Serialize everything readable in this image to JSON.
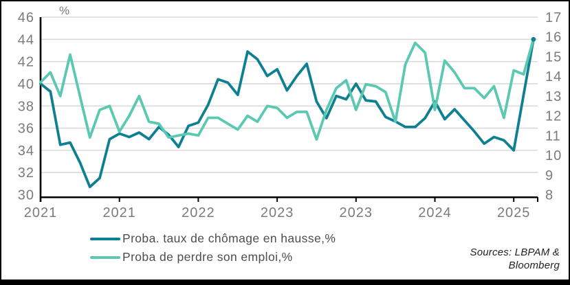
{
  "legend": {
    "items": [
      {
        "label": "Proba. taux de chômage en hausse,%",
        "color": "#0e8091"
      },
      {
        "label": "Proba de perdre son emploi,%",
        "color": "#5bc9b1"
      }
    ]
  },
  "source_note": {
    "line1": "Sources: LBPAM &",
    "line2": "Bloomberg"
  },
  "chart_data": {
    "type": "line",
    "title": "",
    "x": [
      "2021-01",
      "2021-02",
      "2021-03",
      "2021-04",
      "2021-05",
      "2021-06",
      "2021-07",
      "2021-08",
      "2021-09",
      "2021-10",
      "2021-11",
      "2021-12",
      "2022-01",
      "2022-02",
      "2022-03",
      "2022-04",
      "2022-05",
      "2022-06",
      "2022-07",
      "2022-08",
      "2022-09",
      "2022-10",
      "2022-11",
      "2022-12",
      "2023-01",
      "2023-02",
      "2023-03",
      "2023-04",
      "2023-05",
      "2023-06",
      "2023-07",
      "2023-08",
      "2023-09",
      "2023-10",
      "2023-11",
      "2023-12",
      "2024-01",
      "2024-02",
      "2024-03",
      "2024-04",
      "2024-05",
      "2024-06",
      "2024-07",
      "2024-08",
      "2024-09",
      "2024-10",
      "2024-11",
      "2024-12",
      "2025-01",
      "2025-02",
      "2025-03"
    ],
    "series": [
      {
        "name": "Proba. taux de chômage en hausse,%",
        "axis": "left",
        "color": "#0e8091",
        "values": [
          40.0,
          39.3,
          34.5,
          34.7,
          32.9,
          30.7,
          31.5,
          35.0,
          35.5,
          35.2,
          35.6,
          35.0,
          36.1,
          35.4,
          34.3,
          36.2,
          36.5,
          38.1,
          40.4,
          40.1,
          39.0,
          42.9,
          42.2,
          40.7,
          41.3,
          39.4,
          40.7,
          41.8,
          38.4,
          36.9,
          38.9,
          38.6,
          40.0,
          38.5,
          38.4,
          37.0,
          36.6,
          36.1,
          36.1,
          36.9,
          38.4,
          36.8,
          37.7,
          36.7,
          35.7,
          34.6,
          35.2,
          34.9,
          34.0,
          39.0,
          44.0
        ]
      },
      {
        "name": "Proba de perdre son emploi,%",
        "axis": "right",
        "color": "#5bc9b1",
        "values": [
          13.7,
          14.2,
          13.0,
          15.1,
          13.0,
          10.9,
          12.3,
          12.5,
          11.2,
          12.0,
          13.0,
          11.7,
          11.6,
          10.9,
          11.0,
          11.1,
          11.0,
          11.9,
          11.9,
          11.6,
          11.3,
          12.0,
          11.7,
          12.5,
          12.4,
          11.9,
          12.2,
          12.2,
          10.8,
          12.3,
          13.4,
          13.8,
          12.3,
          13.6,
          13.5,
          13.2,
          11.7,
          14.6,
          15.7,
          15.2,
          12.3,
          14.8,
          14.2,
          13.4,
          13.4,
          12.9,
          13.5,
          11.9,
          14.3,
          14.1,
          15.9
        ]
      }
    ],
    "left_axis": {
      "label": "%",
      "ticks": [
        46,
        44,
        42,
        40,
        38,
        36,
        34,
        32,
        30
      ],
      "range": [
        30,
        46
      ]
    },
    "right_axis": {
      "ticks": [
        17,
        16,
        15,
        14,
        13,
        12,
        11,
        10,
        9,
        8
      ],
      "range": [
        8,
        17
      ]
    },
    "x_ticks": [
      "2021",
      "2021",
      "2022",
      "2023",
      "2023",
      "2024",
      "2025"
    ],
    "x_tick_month_step": 8,
    "grid": true,
    "legend_position": "bottom-left"
  }
}
